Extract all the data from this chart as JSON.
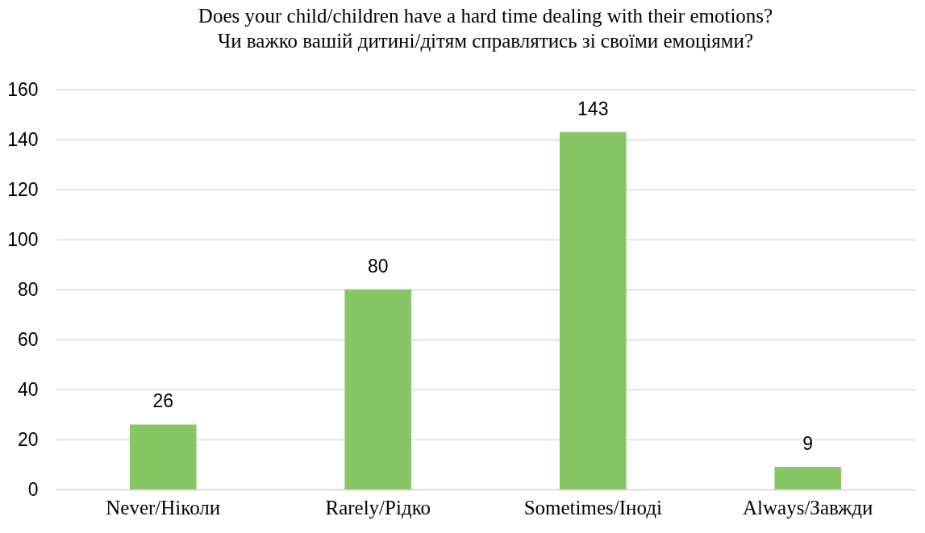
{
  "chart_data": {
    "type": "bar",
    "title": "Does your child/children have a hard time dealing with their emotions?",
    "subtitle": "Чи важко вашій дитині/дітям справлятись зі своїми емоціями?",
    "categories": [
      "Never/Ніколи",
      "Rarely/Рідко",
      "Sometimes/Іноді",
      "Always/Завжди"
    ],
    "values": [
      26,
      80,
      143,
      9
    ],
    "color": "#88c665",
    "ylim": [
      0,
      160
    ],
    "yticks": [
      0,
      20,
      40,
      60,
      80,
      100,
      120,
      140,
      160
    ],
    "grid": "y",
    "data_labels": true
  }
}
